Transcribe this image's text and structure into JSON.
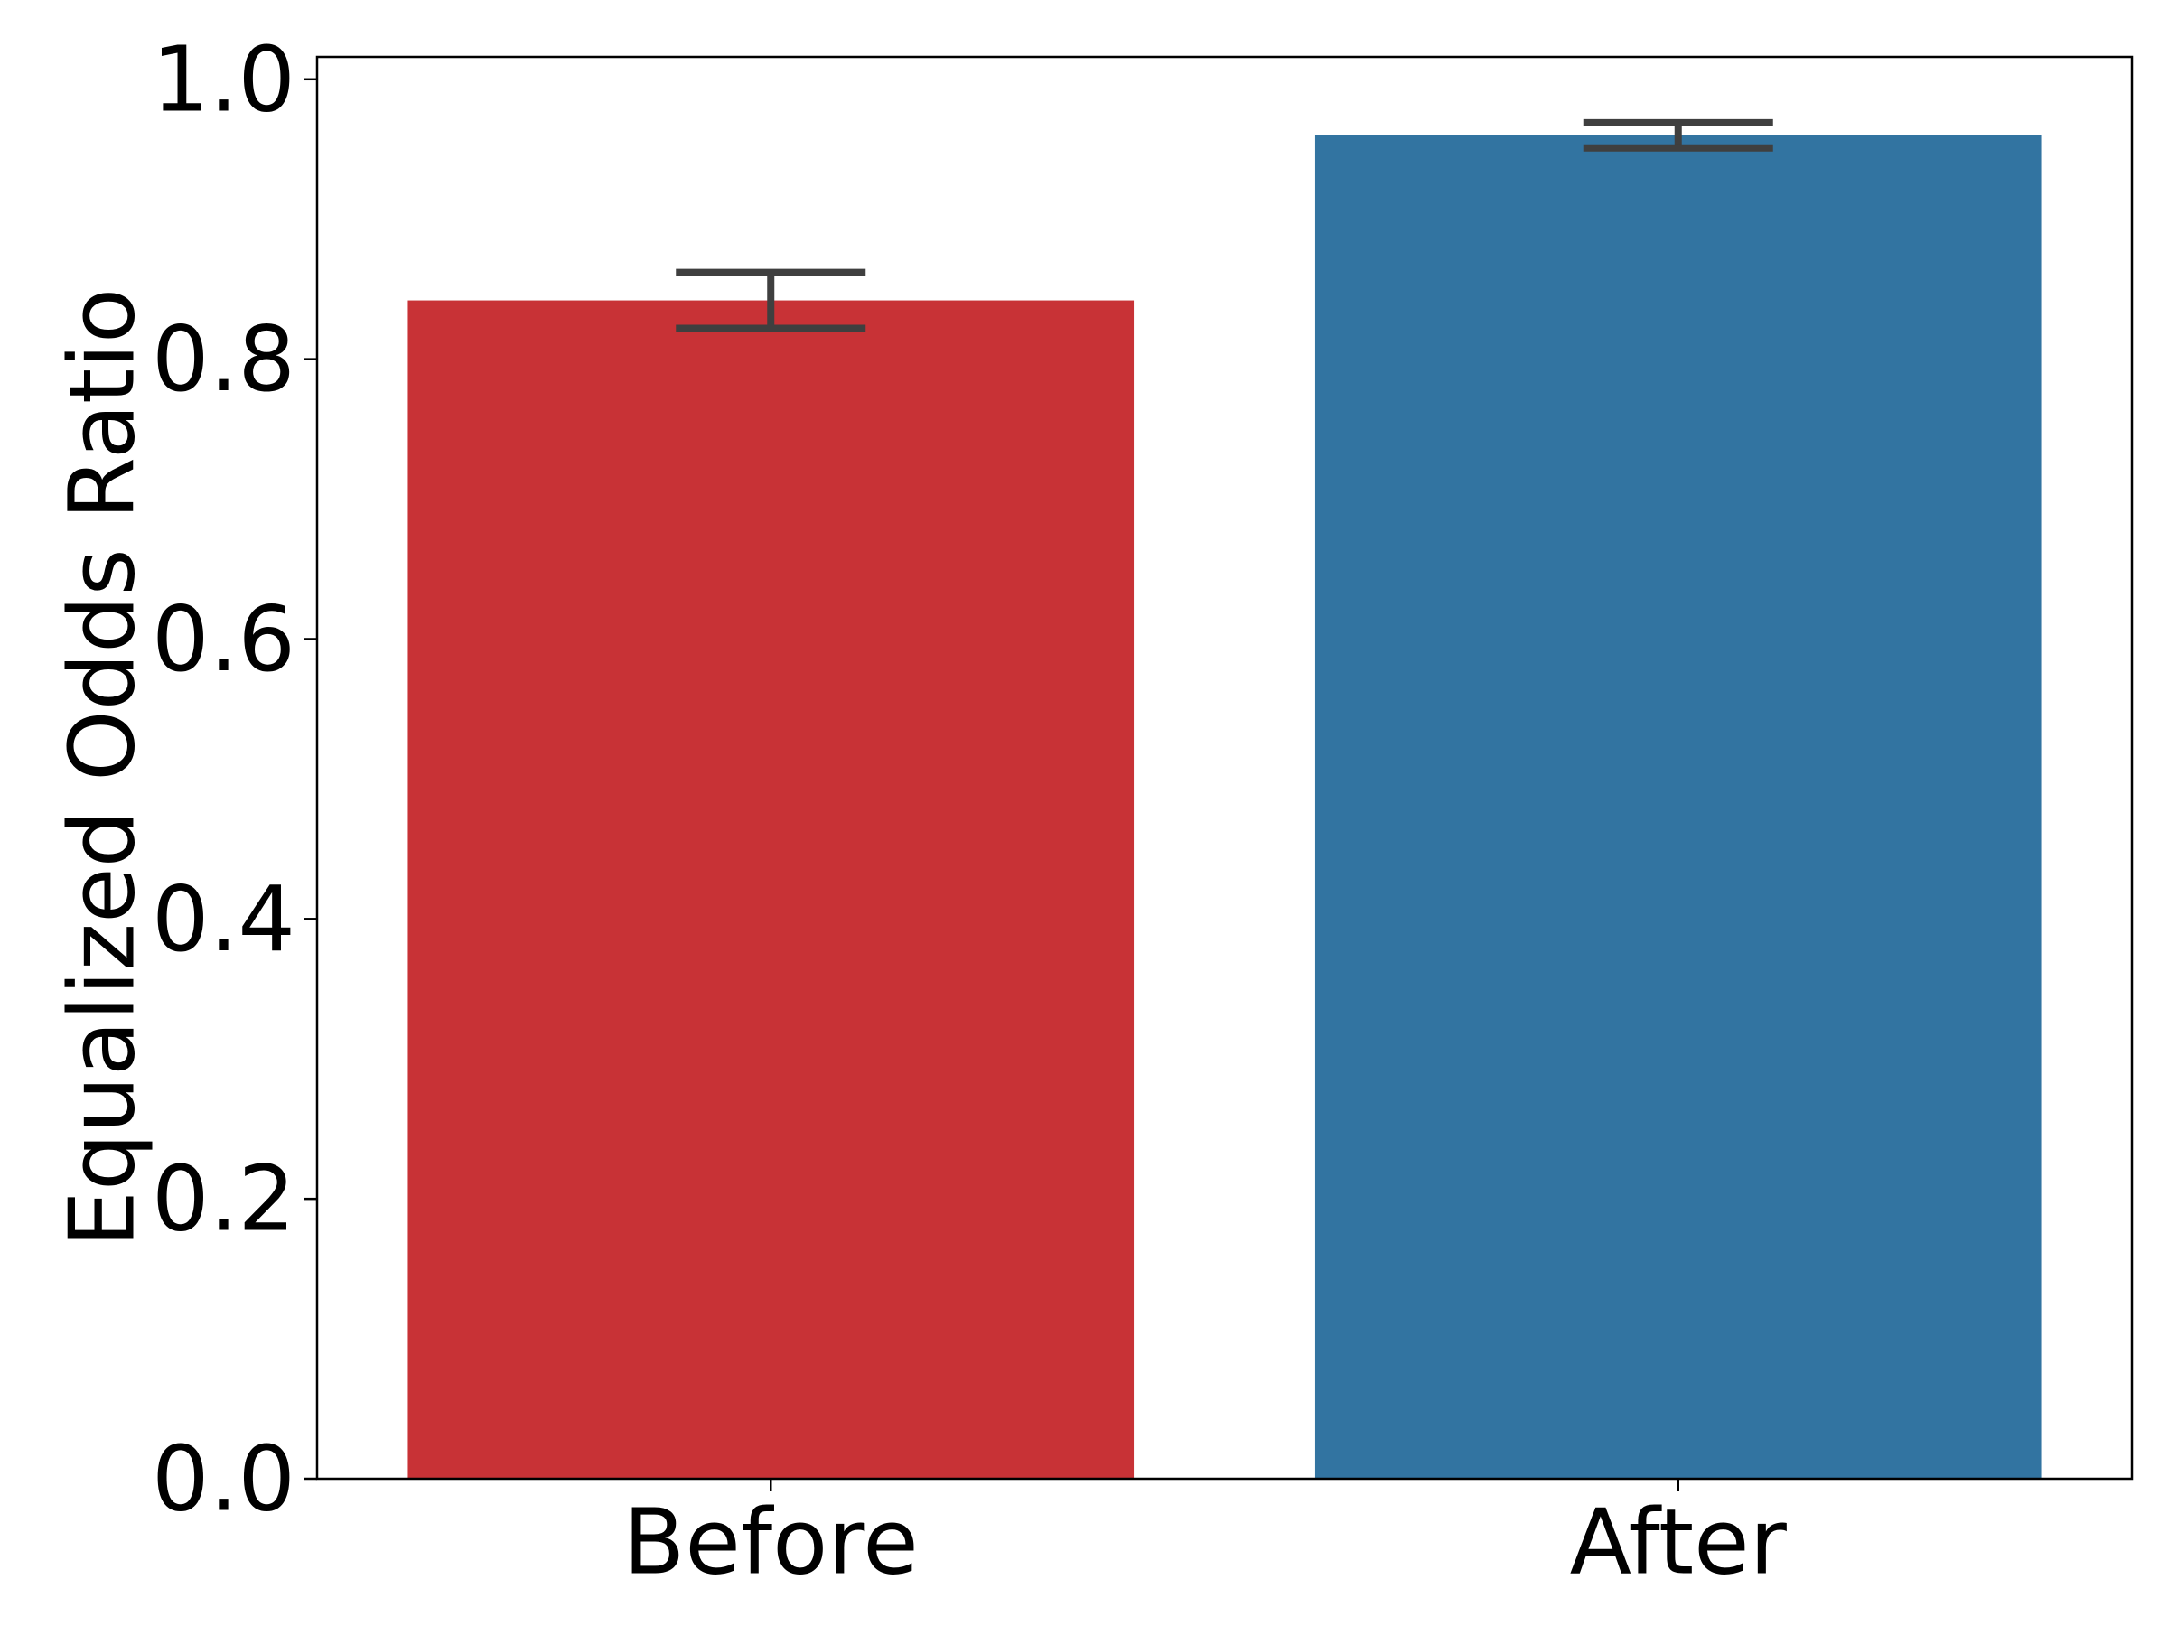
{
  "chart_data": {
    "type": "bar",
    "y_label": "Equalized Odds Ratio",
    "categories": [
      "Before",
      "After"
    ],
    "values": [
      0.842,
      0.96
    ],
    "errors": [
      0.02,
      0.009
    ],
    "colors": [
      "#c83236",
      "#3274a1"
    ],
    "error_color": "#3f3f3f",
    "ylim": [
      0,
      1.016
    ],
    "yticks": [
      {
        "value": 0,
        "label": "0.0"
      },
      0.2,
      0.4,
      0.6,
      0.8,
      {
        "value": 1,
        "label": "1.0"
      }
    ],
    "grid": false
  }
}
